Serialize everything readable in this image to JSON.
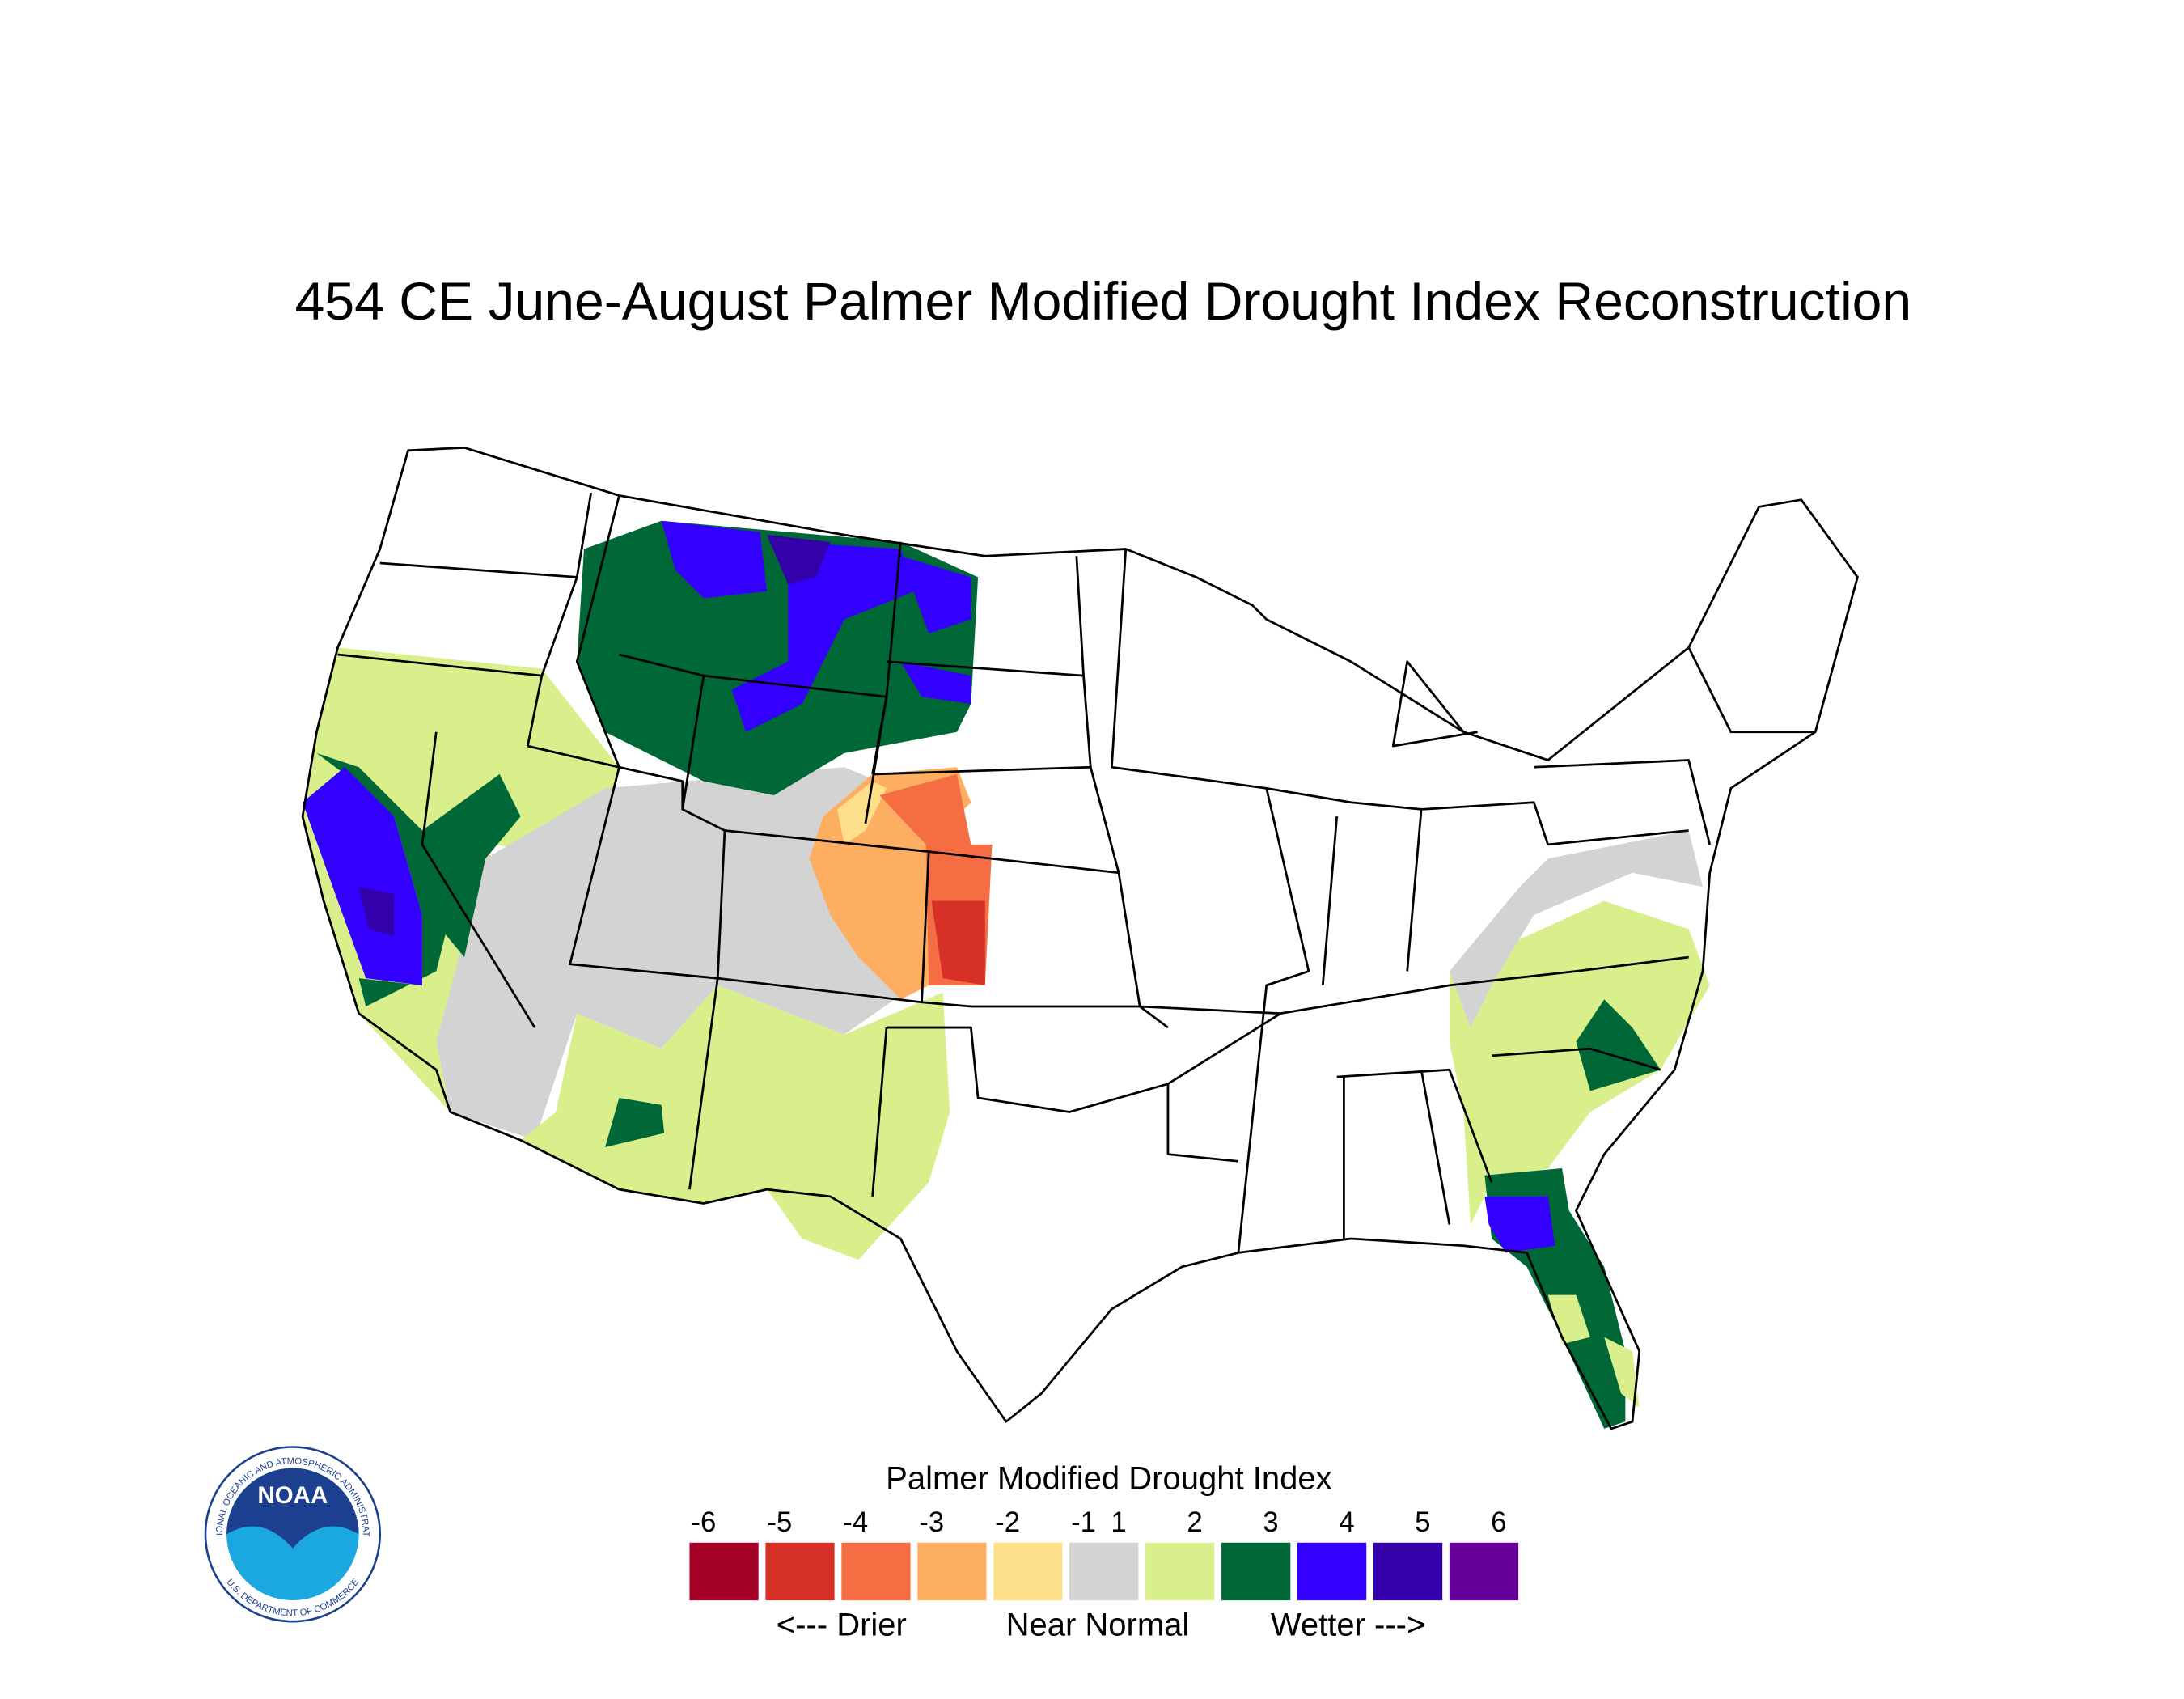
{
  "title": "454 CE  June-August  Palmer Modified Drought Index Reconstruction",
  "legend": {
    "title": "Palmer Modified Drought Index",
    "ticks": [
      -6,
      -5,
      -4,
      -3,
      -2,
      -1,
      1,
      2,
      3,
      4,
      5,
      6
    ],
    "colors": [
      "#a50026",
      "#d73027",
      "#f46d43",
      "#fdae61",
      "#fee08b",
      "#d3d3d3",
      "#d9ef8b",
      "#006837",
      "#3300ff",
      "#3300aa",
      "#660099"
    ],
    "captions": [
      "<--- Drier",
      "Near Normal",
      "Wetter --->"
    ]
  },
  "logo": {
    "name": "NOAA",
    "ring_top": "NATIONAL OCEANIC AND ATMOSPHERIC ADMINISTRATION",
    "ring_bottom": "U.S. DEPARTMENT OF COMMERCE"
  }
}
